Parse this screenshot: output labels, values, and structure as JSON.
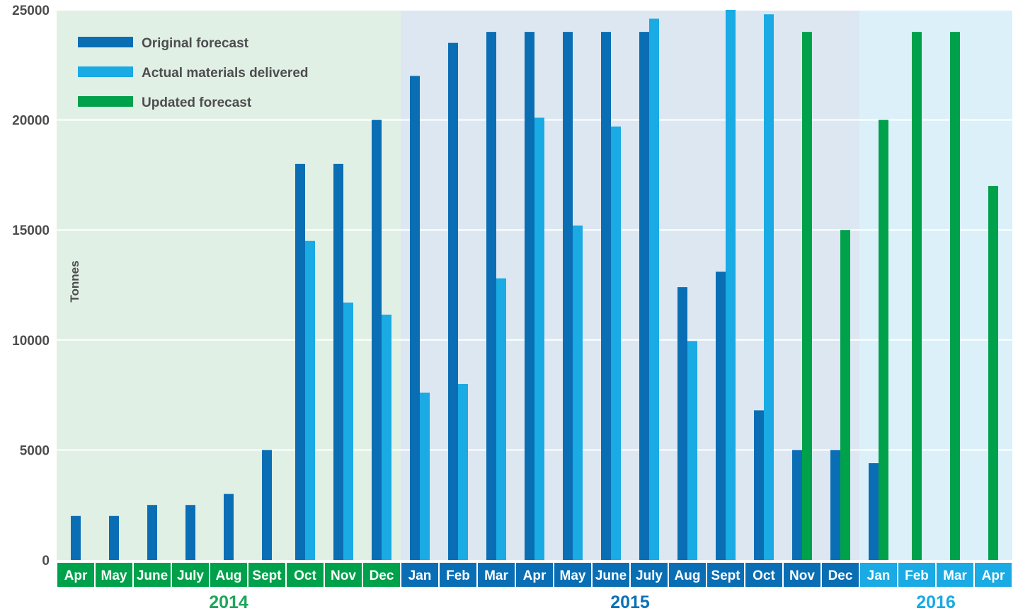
{
  "chart_data": {
    "type": "bar",
    "ylabel": "Tonnes",
    "ylim": [
      0,
      25000
    ],
    "yticks": [
      0,
      5000,
      10000,
      15000,
      20000,
      25000
    ],
    "grid": true,
    "legend_position": "top-left",
    "categories": [
      "Apr",
      "May",
      "June",
      "July",
      "Aug",
      "Sept",
      "Oct",
      "Nov",
      "Dec",
      "Jan",
      "Feb",
      "Mar",
      "Apr",
      "May",
      "June",
      "July",
      "Aug",
      "Sept",
      "Oct",
      "Nov",
      "Dec",
      "Jan",
      "Feb",
      "Mar",
      "Apr"
    ],
    "category_years": [
      "2014",
      "2014",
      "2014",
      "2014",
      "2014",
      "2014",
      "2014",
      "2014",
      "2014",
      "2015",
      "2015",
      "2015",
      "2015",
      "2015",
      "2015",
      "2015",
      "2015",
      "2015",
      "2015",
      "2015",
      "2015",
      "2016",
      "2016",
      "2016",
      "2016"
    ],
    "years": [
      {
        "label": "2014",
        "color": "#1ea65a",
        "band": "#e1f0e5",
        "month_bg": "#00a14b"
      },
      {
        "label": "2015",
        "color": "#0a72b8",
        "band": "#dce7f1",
        "month_bg": "#0a6eb4"
      },
      {
        "label": "2016",
        "color": "#1aa9e1",
        "band": "#dcf0f9",
        "month_bg": "#1aaae4"
      }
    ],
    "series": [
      {
        "name": "Original forecast",
        "color": "#0a6eb4",
        "values": [
          2000,
          2000,
          2500,
          2500,
          3000,
          5000,
          18000,
          18000,
          20000,
          22000,
          23500,
          24000,
          24000,
          24000,
          24000,
          24000,
          12400,
          13100,
          6800,
          5000,
          5000,
          4400,
          null,
          null,
          null
        ]
      },
      {
        "name": "Actual materials delivered",
        "color": "#1aaae4",
        "values": [
          null,
          null,
          null,
          null,
          null,
          null,
          14500,
          11700,
          11150,
          7600,
          8000,
          12800,
          20100,
          15200,
          19700,
          24600,
          9950,
          25000,
          24800,
          null,
          null,
          null,
          null,
          null,
          null
        ]
      },
      {
        "name": "Updated forecast",
        "color": "#00a14b",
        "values": [
          null,
          null,
          null,
          null,
          null,
          null,
          null,
          null,
          null,
          null,
          null,
          null,
          null,
          null,
          null,
          null,
          null,
          null,
          null,
          24000,
          15000,
          20000,
          24000,
          24000,
          17000
        ]
      }
    ]
  }
}
